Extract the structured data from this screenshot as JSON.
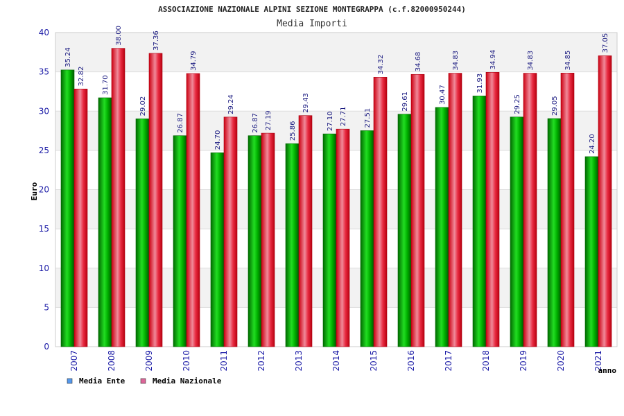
{
  "chart_data": {
    "type": "bar",
    "title": "ASSOCIAZIONE NAZIONALE ALPINI SEZIONE MONTEGRAPPA (c.f.82000950244)",
    "subtitle": "Media Importi",
    "xlabel": "anno",
    "ylabel": "Euro",
    "ylim": [
      0,
      40
    ],
    "yticks": [
      "0",
      "5",
      "10",
      "15",
      "20",
      "25",
      "30",
      "35",
      "40"
    ],
    "categories": [
      "2007",
      "2008",
      "2009",
      "2010",
      "2011",
      "2012",
      "2013",
      "2014",
      "2015",
      "2016",
      "2017",
      "2018",
      "2019",
      "2020",
      "2021"
    ],
    "series": [
      {
        "name": "Media Ente",
        "values": [
          35.24,
          31.7,
          29.02,
          26.87,
          24.7,
          26.87,
          25.86,
          27.1,
          27.51,
          29.61,
          30.47,
          31.93,
          29.25,
          29.05,
          24.2
        ],
        "labels": [
          "35.24",
          "31.70",
          "29.02",
          "26.87",
          "24.70",
          "26.87",
          "25.86",
          "27.10",
          "27.51",
          "29.61",
          "30.47",
          "31.93",
          "29.25",
          "29.05",
          "24.20"
        ]
      },
      {
        "name": "Media Nazionale",
        "values": [
          32.82,
          38.0,
          37.36,
          34.79,
          29.24,
          27.19,
          29.43,
          27.71,
          34.32,
          34.68,
          34.83,
          34.94,
          34.83,
          34.85,
          37.05
        ],
        "labels": [
          "32.82",
          "38.00",
          "37.36",
          "34.79",
          "29.24",
          "27.19",
          "29.43",
          "27.71",
          "34.32",
          "34.68",
          "34.83",
          "34.94",
          "34.83",
          "34.85",
          "37.05"
        ]
      }
    ],
    "grid": true,
    "banded_background": true,
    "legend": "bottom-left",
    "colors": {
      "series1": "#00a000",
      "series2": "#e02030",
      "legend1": "#5599ee",
      "legend2": "#dd6699",
      "band": "#f2f2f2",
      "grid": "#dddddd"
    }
  }
}
